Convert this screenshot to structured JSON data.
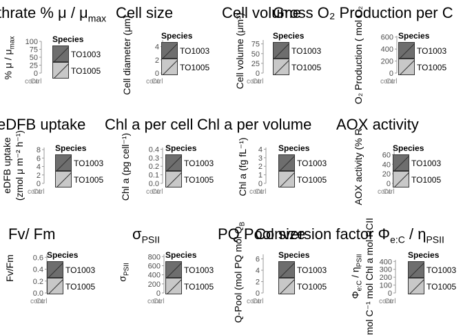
{
  "chart_data": [
    {
      "type": "bar",
      "title": "thrate % μ / μ",
      "title_sub": "max",
      "ylabel": "% μ / μ",
      "ylabel_sub": "max",
      "ylim": [
        0,
        100
      ],
      "yticks": [
        "0",
        "25",
        "50",
        "75",
        "100"
      ],
      "xticks": [
        "contrl",
        "Cu"
      ],
      "legend": {
        "title": "Species",
        "entries": [
          "TO1003",
          "TO1005"
        ]
      }
    },
    {
      "type": "bar",
      "title": "Cell size",
      "ylabel": "Cell diameter (μm)",
      "ylim": [
        0,
        5
      ],
      "yticks": [
        "0",
        "2",
        "4"
      ],
      "xticks": [
        "contrl",
        "Cu"
      ],
      "legend": {
        "title": "Species",
        "entries": [
          "TO1003",
          "TO1005"
        ]
      }
    },
    {
      "type": "bar",
      "title": "Cell volume",
      "ylabel": "Cell volume (μm³)",
      "ylim": [
        0,
        85
      ],
      "yticks": [
        "0",
        "25",
        "50",
        "75"
      ],
      "xticks": [
        "contrl",
        "Cu"
      ],
      "legend": {
        "title": "Species",
        "entries": [
          "TO1003",
          "TO1005"
        ]
      }
    },
    {
      "type": "bar",
      "title": "Gross O₂ Production per C",
      "ylabel": "O₂ Production ( mol O₂",
      "ylim": [
        0,
        620
      ],
      "yticks": [
        "0",
        "200",
        "400",
        "600"
      ],
      "xticks": [
        "contrl",
        "Cu"
      ],
      "legend": {
        "title": "Species",
        "entries": [
          "TO1003",
          "TO1005"
        ]
      }
    },
    {
      "type": "bar",
      "title": "eDFB uptake",
      "ylabel": "eDFB uptake",
      "ylabel2": "(zmol μ m⁻² h⁻¹)",
      "ylim": [
        0,
        8.5
      ],
      "yticks": [
        "0",
        "2",
        "4",
        "6",
        "8"
      ],
      "xticks": [
        "contrl",
        "Cu"
      ],
      "legend": {
        "title": "Species",
        "entries": [
          "TO1003",
          "TO1005"
        ]
      }
    },
    {
      "type": "bar",
      "title": "Chl a per cell",
      "ylabel": "Chl a (pg cell⁻¹)",
      "ylim": [
        0,
        0.42
      ],
      "yticks": [
        "0.0",
        "0.1",
        "0.2",
        "0.3",
        "0.4"
      ],
      "xticks": [
        "contrl",
        "Cu"
      ],
      "legend": {
        "title": "Species",
        "entries": [
          "TO1003",
          "TO1005"
        ]
      }
    },
    {
      "type": "bar",
      "title": "Chl a per volume",
      "ylabel": "Chl a (fg fL⁻¹)",
      "ylim": [
        0,
        4.2
      ],
      "yticks": [
        "0",
        "1",
        "2",
        "3",
        "4"
      ],
      "xticks": [
        "contrl",
        "Cu"
      ],
      "legend": {
        "title": "Species",
        "entries": [
          "TO1003",
          "TO1005"
        ]
      }
    },
    {
      "type": "bar",
      "title": "AOX activity",
      "ylabel": "AOX activity (% R",
      "ylim": [
        0,
        75
      ],
      "yticks": [
        "0",
        "20",
        "40",
        "60"
      ],
      "xticks": [
        "contrl",
        "Cu"
      ],
      "legend": {
        "title": "Species",
        "entries": [
          "TO1003",
          "TO1005"
        ]
      }
    },
    {
      "type": "bar",
      "title": "Fv/ Fm",
      "ylabel": "Fv/Fm",
      "ylim": [
        0,
        0.65
      ],
      "yticks": [
        "0.0",
        "0.2",
        "0.4",
        "0.6"
      ],
      "xticks": [
        "contrl",
        "Cu"
      ],
      "legend": {
        "title": "Species",
        "entries": [
          "TO1003",
          "TO1005"
        ]
      }
    },
    {
      "type": "bar",
      "title": "σ",
      "title_sub": "PSII",
      "ylabel": "σ",
      "ylabel_sub": "PSII",
      "ylim": [
        0,
        850
      ],
      "yticks": [
        "0",
        "200",
        "400",
        "600",
        "800"
      ],
      "xticks": [
        "contrl",
        "Cu"
      ],
      "legend": {
        "title": "Species",
        "entries": [
          "TO1003",
          "TO1005"
        ]
      }
    },
    {
      "type": "bar",
      "title": "PQ Pool size",
      "ylabel": "Q-Pool (mol PQ mol Q",
      "ylabel_sub": "B",
      "ylim": [
        0,
        6.8
      ],
      "yticks": [
        "0",
        "2",
        "4",
        "6"
      ],
      "xticks": [
        "contrl",
        "Cu"
      ],
      "legend": {
        "title": "Species",
        "entries": [
          "TO1003",
          "TO1005"
        ]
      }
    },
    {
      "type": "bar",
      "title": "Conversion factor Φ",
      "title_sub": "e:C",
      "title_mid": " / η",
      "title_sub2": "PSII",
      "ylabel": "Φ",
      "ylabel_sub": "e:C",
      "ylabel_mid": " / η",
      "ylabel_sub2": "PSII",
      "ylabel2": "mol C⁻¹ mol Chl a mol RCII",
      "ylim": [
        0,
        420
      ],
      "yticks": [
        "0",
        "100",
        "200",
        "300",
        "400"
      ],
      "xticks": [
        "contrl",
        "Cu"
      ],
      "legend": {
        "title": "Species",
        "entries": [
          "TO1003",
          "TO1005"
        ]
      }
    }
  ],
  "colors": {
    "TO1003": "#6e6e6e",
    "TO1005": "#c8c8c8",
    "axis": "#9a9a9a",
    "text": "#000000"
  }
}
